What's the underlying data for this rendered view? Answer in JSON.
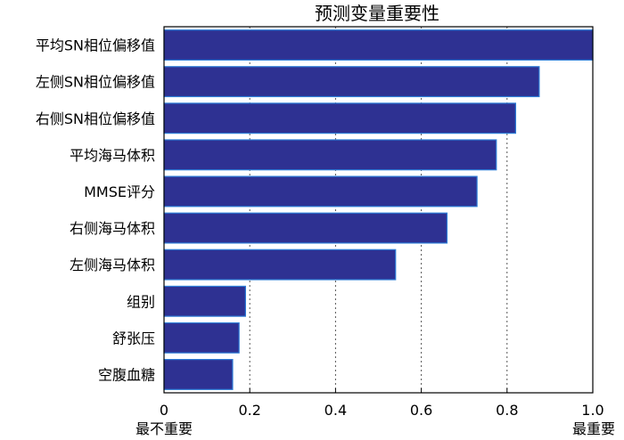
{
  "chart_data": {
    "type": "bar",
    "orientation": "horizontal",
    "title": "预测变量重要性",
    "categories": [
      "平均SN相位偏移值",
      "左侧SN相位偏移值",
      "右侧SN相位偏移值",
      "平均海马体积",
      "MMSE评分",
      "右侧海马体积",
      "左侧海马体积",
      "组别",
      "舒张压",
      "空腹血糖"
    ],
    "values": [
      1.0,
      0.875,
      0.82,
      0.775,
      0.73,
      0.66,
      0.54,
      0.19,
      0.175,
      0.16
    ],
    "xlim": [
      0,
      1.0
    ],
    "xticks": [
      "0",
      "0.2",
      "0.4",
      "0.6",
      "0.8",
      "1.0"
    ],
    "xtick_values": [
      0,
      0.2,
      0.4,
      0.6,
      0.8,
      1.0
    ],
    "x_end_labels": {
      "left": "最不重要",
      "right": "最重要"
    },
    "grid": "vertical dotted",
    "bar_color": "#2e3192",
    "bar_edge_color": "#2b7bd6"
  }
}
